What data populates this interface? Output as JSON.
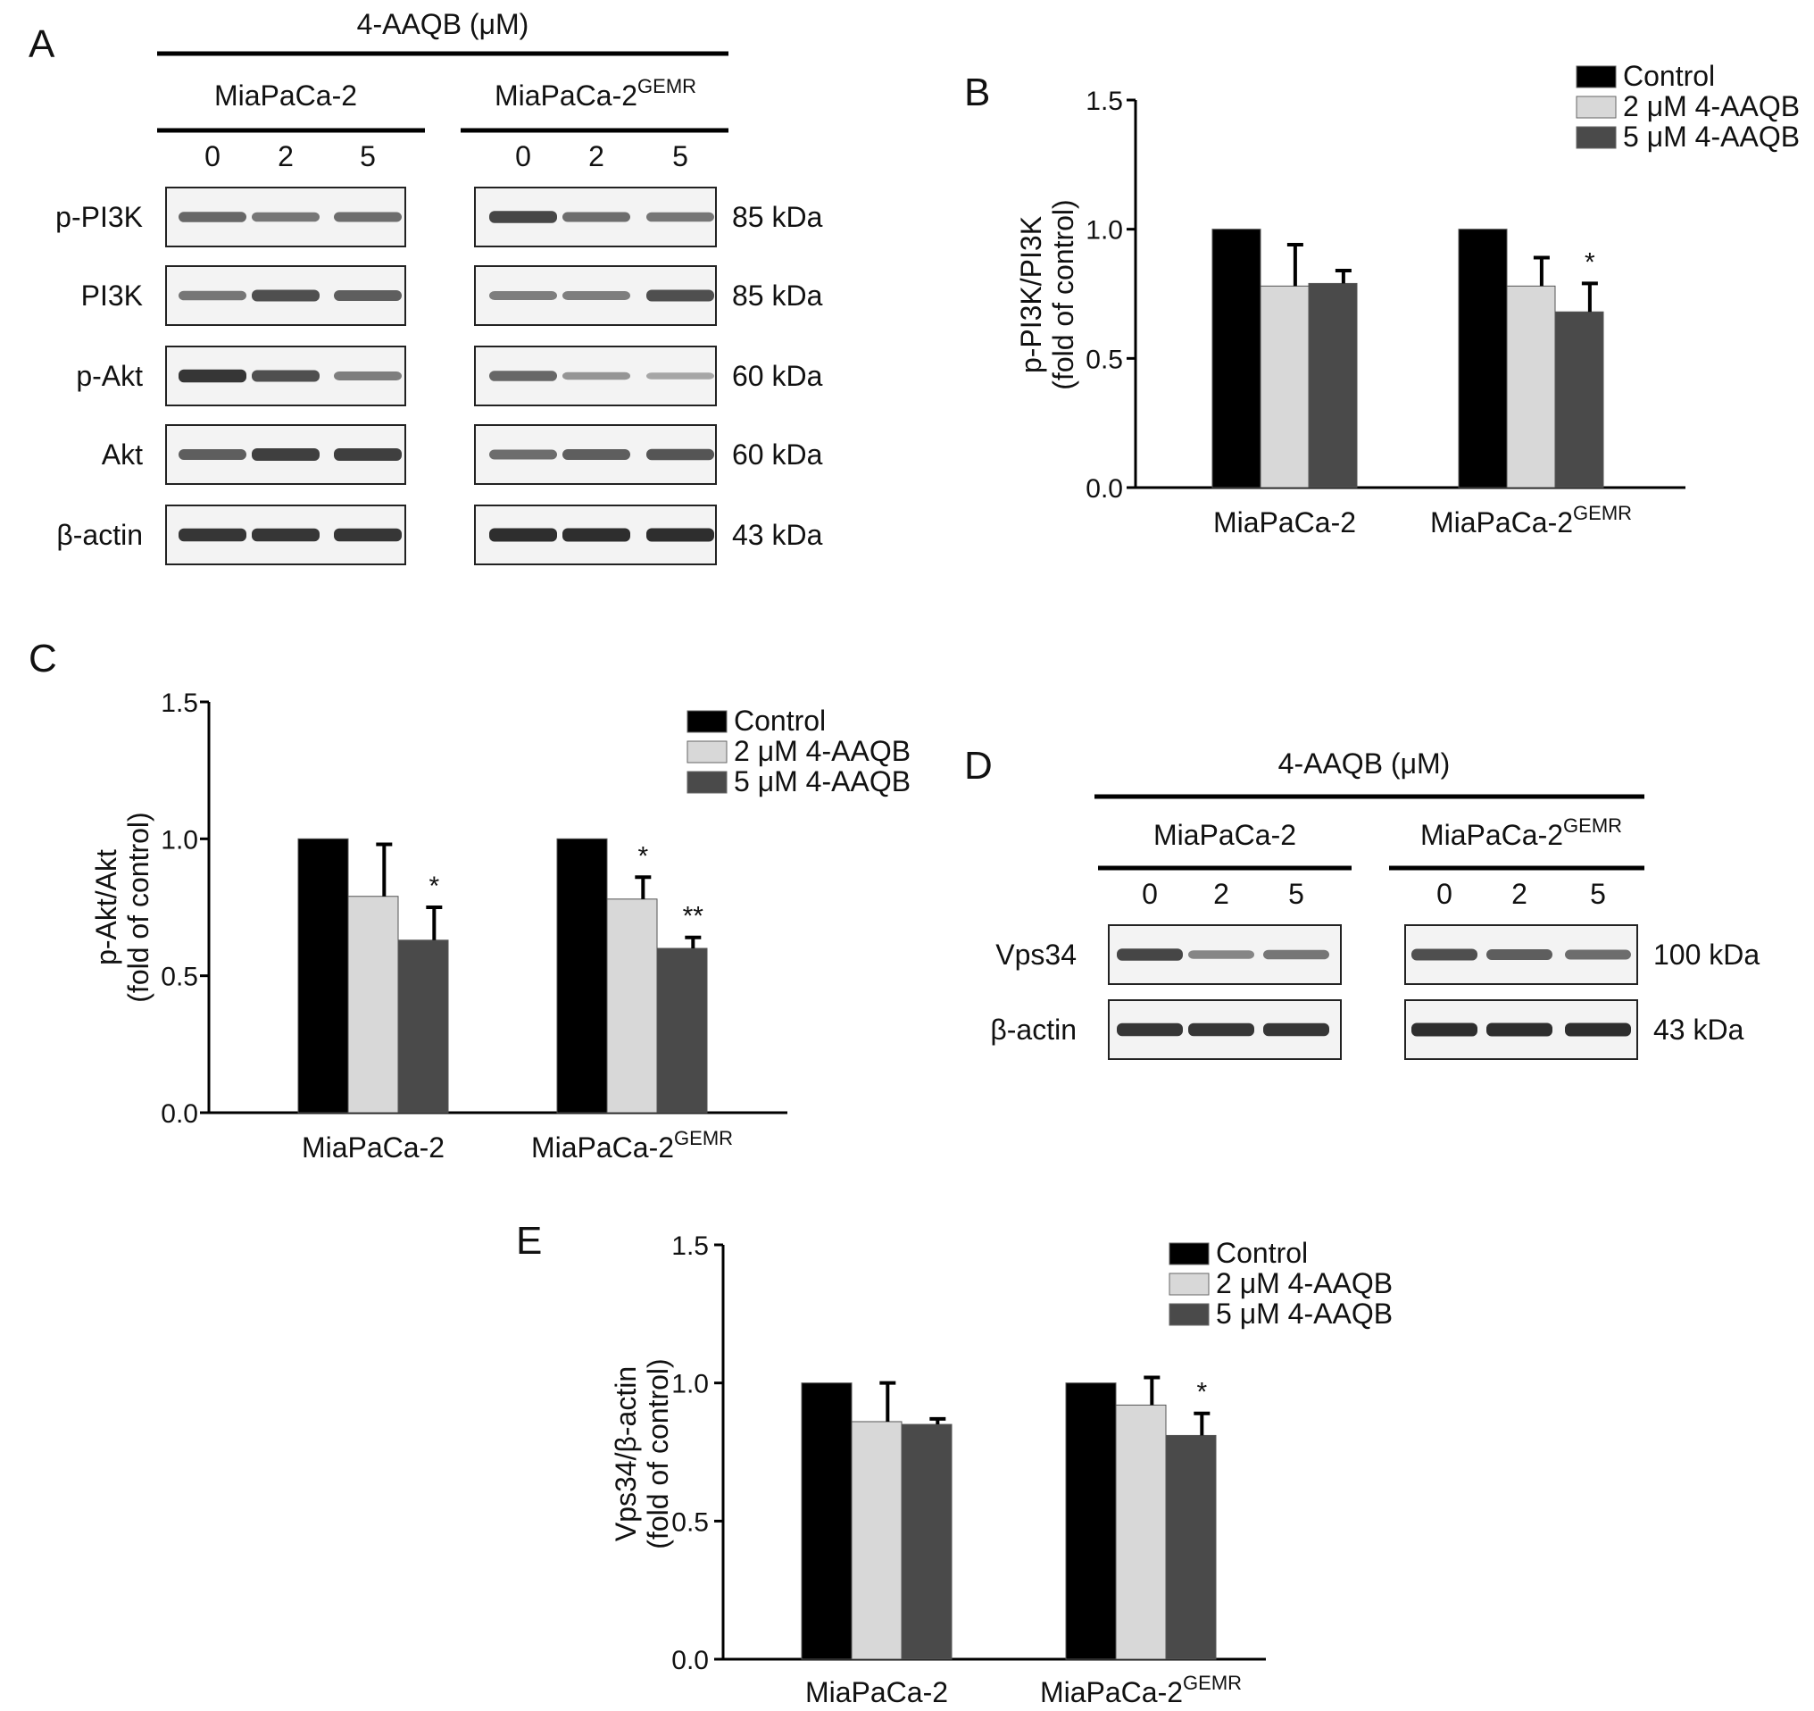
{
  "panels": {
    "A": "A",
    "B": "B",
    "C": "C",
    "D": "D",
    "E": "E"
  },
  "blotA": {
    "treatment_header": "4-AAQB (μM)",
    "cell_lines": [
      {
        "name": "MiaPaCa-2",
        "sup": ""
      },
      {
        "name": "MiaPaCa-2",
        "sup": "GEMR"
      }
    ],
    "doses": [
      "0",
      "2",
      "5"
    ],
    "rows": [
      {
        "protein": "p-PI3K",
        "kda": "85 kDa",
        "intens": [
          [
            0.55,
            0.45,
            0.5
          ],
          [
            0.75,
            0.5,
            0.45
          ]
        ]
      },
      {
        "protein": "PI3K",
        "kda": "85 kDa",
        "intens": [
          [
            0.45,
            0.7,
            0.6
          ],
          [
            0.4,
            0.4,
            0.7
          ]
        ]
      },
      {
        "protein": "p-Akt",
        "kda": "60 kDa",
        "intens": [
          [
            0.85,
            0.7,
            0.4
          ],
          [
            0.55,
            0.25,
            0.15
          ]
        ]
      },
      {
        "protein": "Akt",
        "kda": "60 kDa",
        "intens": [
          [
            0.6,
            0.8,
            0.8
          ],
          [
            0.5,
            0.6,
            0.65
          ]
        ]
      },
      {
        "protein": "β-actin",
        "kda": "43 kDa",
        "intens": [
          [
            0.85,
            0.85,
            0.85
          ],
          [
            0.9,
            0.9,
            0.9
          ]
        ]
      }
    ]
  },
  "blotD": {
    "treatment_header": "4-AAQB (μM)",
    "cell_lines": [
      {
        "name": "MiaPaCa-2",
        "sup": ""
      },
      {
        "name": "MiaPaCa-2",
        "sup": "GEMR"
      }
    ],
    "doses": [
      "0",
      "2",
      "5"
    ],
    "rows": [
      {
        "protein": "Vps34",
        "kda": "100 kDa",
        "intens": [
          [
            0.75,
            0.35,
            0.45
          ],
          [
            0.7,
            0.6,
            0.5
          ]
        ]
      },
      {
        "protein": "β-actin",
        "kda": "43 kDa",
        "intens": [
          [
            0.85,
            0.85,
            0.85
          ],
          [
            0.9,
            0.9,
            0.9
          ]
        ]
      }
    ]
  },
  "colors": {
    "control": "#000000",
    "dose2": "#d8d8d8",
    "dose5": "#4a4a4a"
  },
  "chart_data": [
    {
      "panel": "B",
      "type": "bar",
      "ylabel": "p-PI3K/PI3K",
      "ylabel2": "(fold of control)",
      "ylim": [
        0,
        1.5
      ],
      "yticks": [
        "0.0",
        "0.5",
        "1.0",
        "1.5"
      ],
      "categories": [
        {
          "name": "MiaPaCa-2",
          "sup": ""
        },
        {
          "name": "MiaPaCa-2",
          "sup": "GEMR"
        }
      ],
      "legend": [
        "Control",
        "2 μM 4-AAQB",
        "5 μM 4-AAQB"
      ],
      "series": [
        {
          "name": "Control",
          "values": [
            1.0,
            1.0
          ],
          "errors": [
            0,
            0
          ]
        },
        {
          "name": "2 μM 4-AAQB",
          "values": [
            0.78,
            0.78
          ],
          "errors": [
            0.16,
            0.11
          ]
        },
        {
          "name": "5 μM 4-AAQB",
          "values": [
            0.79,
            0.68
          ],
          "errors": [
            0.05,
            0.11
          ]
        }
      ],
      "annotations": [
        [
          "",
          ""
        ],
        [
          "",
          ""
        ],
        [
          "",
          "*"
        ]
      ]
    },
    {
      "panel": "C",
      "type": "bar",
      "ylabel": "p-Akt/Akt",
      "ylabel2": "(fold of control)",
      "ylim": [
        0,
        1.5
      ],
      "yticks": [
        "0.0",
        "0.5",
        "1.0",
        "1.5"
      ],
      "categories": [
        {
          "name": "MiaPaCa-2",
          "sup": ""
        },
        {
          "name": "MiaPaCa-2",
          "sup": "GEMR"
        }
      ],
      "legend": [
        "Control",
        "2 μM 4-AAQB",
        "5 μM 4-AAQB"
      ],
      "series": [
        {
          "name": "Control",
          "values": [
            1.0,
            1.0
          ],
          "errors": [
            0,
            0
          ]
        },
        {
          "name": "2 μM 4-AAQB",
          "values": [
            0.79,
            0.78
          ],
          "errors": [
            0.19,
            0.08
          ]
        },
        {
          "name": "5 μM 4-AAQB",
          "values": [
            0.63,
            0.6
          ],
          "errors": [
            0.12,
            0.04
          ]
        }
      ],
      "annotations": [
        [
          "",
          ""
        ],
        [
          "",
          "*"
        ],
        [
          "*",
          "**"
        ]
      ]
    },
    {
      "panel": "E",
      "type": "bar",
      "ylabel": "Vps34/β-actin",
      "ylabel2": "(fold of control)",
      "ylim": [
        0,
        1.5
      ],
      "yticks": [
        "0.0",
        "0.5",
        "1.0",
        "1.5"
      ],
      "categories": [
        {
          "name": "MiaPaCa-2",
          "sup": ""
        },
        {
          "name": "MiaPaCa-2",
          "sup": "GEMR"
        }
      ],
      "legend": [
        "Control",
        "2 μM 4-AAQB",
        "5 μM 4-AAQB"
      ],
      "series": [
        {
          "name": "Control",
          "values": [
            1.0,
            1.0
          ],
          "errors": [
            0,
            0
          ]
        },
        {
          "name": "2 μM 4-AAQB",
          "values": [
            0.86,
            0.92
          ],
          "errors": [
            0.14,
            0.1
          ]
        },
        {
          "name": "5 μM 4-AAQB",
          "values": [
            0.85,
            0.81
          ],
          "errors": [
            0.02,
            0.08
          ]
        }
      ],
      "annotations": [
        [
          "",
          ""
        ],
        [
          "",
          ""
        ],
        [
          "",
          "*"
        ]
      ]
    }
  ]
}
